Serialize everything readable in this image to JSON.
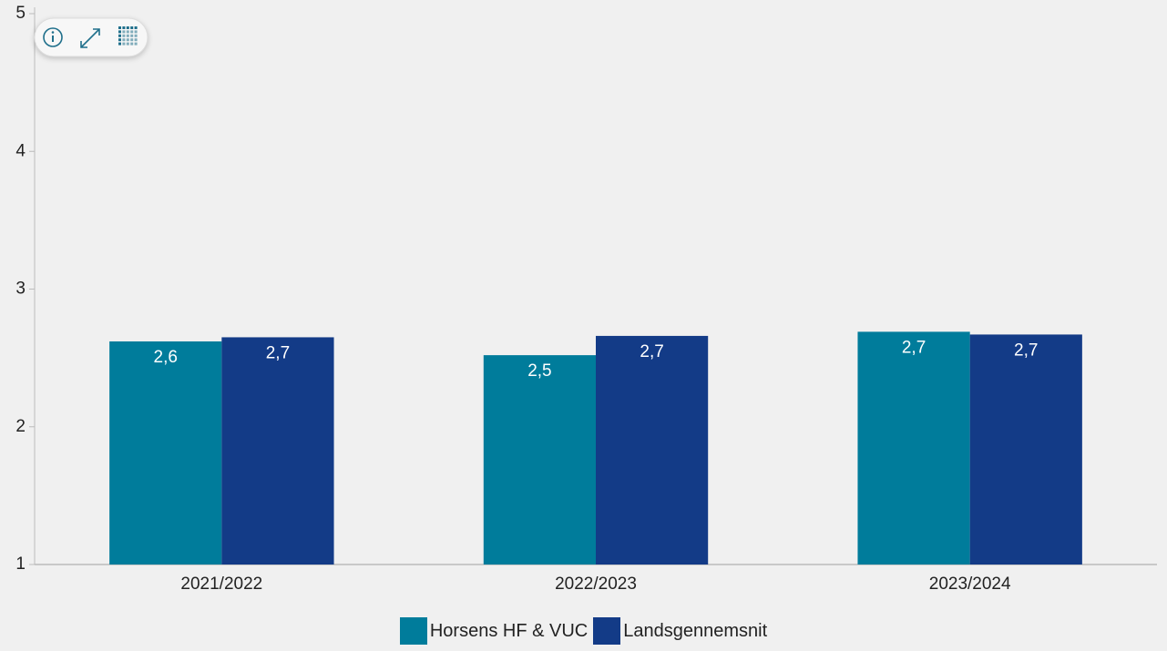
{
  "chart_data": {
    "type": "bar",
    "categories": [
      "2021/2022",
      "2022/2023",
      "2023/2024"
    ],
    "series": [
      {
        "name": "Horsens HF & VUC",
        "color": "#007c9b",
        "values": [
          2.62,
          2.52,
          2.69
        ],
        "value_labels": [
          "2,6",
          "2,5",
          "2,7"
        ]
      },
      {
        "name": "Landsgennemsnit",
        "color": "#133b87",
        "values": [
          2.65,
          2.66,
          2.67
        ],
        "value_labels": [
          "2,7",
          "2,7",
          "2,7"
        ]
      }
    ],
    "ylim": [
      1,
      5
    ],
    "yticks": [
      1,
      2,
      3,
      4,
      5
    ],
    "grid": false,
    "legend": "bottom"
  }
}
